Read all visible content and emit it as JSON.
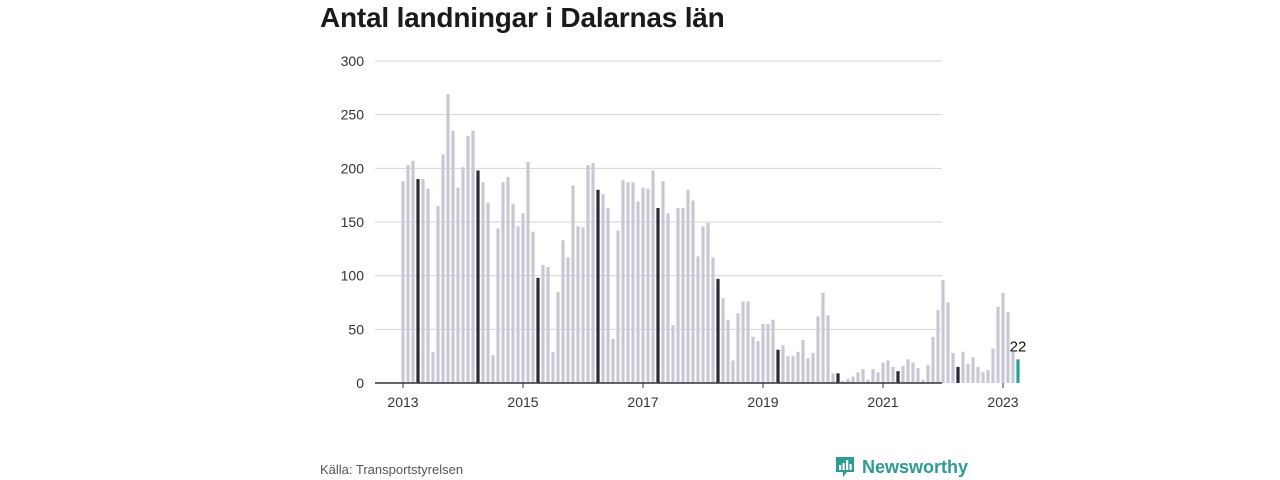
{
  "title": "Antal landningar i Dalarnas län",
  "source": "Källa: Transportstyrelsen",
  "brand": "Newsworthy",
  "colors": {
    "bar": "#c8c8d4",
    "bar_highlight": "#2b2b33",
    "bar_latest": "#22a39a",
    "grid": "#d6d6d6",
    "axis": "#333333",
    "brand": "#2e9b92"
  },
  "chart_data": {
    "type": "bar",
    "title": "Antal landningar i Dalarnas län",
    "ylim": [
      0,
      300
    ],
    "yticks": [
      0,
      50,
      100,
      150,
      200,
      250,
      300
    ],
    "xtick_labels": [
      "2013",
      "2015",
      "2017",
      "2019",
      "2021",
      "2023"
    ],
    "xtick_indices": [
      0,
      24,
      48,
      72,
      96,
      120
    ],
    "grid": true,
    "highlight_month": "April",
    "start": "2013-01",
    "end": "2023-04",
    "values": [
      188,
      203,
      207,
      190,
      190,
      181,
      29,
      165,
      213,
      269,
      235,
      182,
      201,
      230,
      235,
      198,
      187,
      168,
      26,
      144,
      187,
      192,
      167,
      146,
      158,
      206,
      141,
      98,
      110,
      108,
      29,
      85,
      133,
      117,
      184,
      146,
      145,
      203,
      205,
      180,
      176,
      163,
      41,
      142,
      189,
      187,
      187,
      169,
      182,
      181,
      198,
      163,
      188,
      158,
      54,
      163,
      163,
      180,
      170,
      118,
      146,
      149,
      117,
      97,
      79,
      59,
      21,
      65,
      76,
      76,
      43,
      39,
      55,
      55,
      59,
      31,
      35,
      25,
      25,
      29,
      40,
      23,
      28,
      62,
      84,
      63,
      9,
      9,
      2,
      4,
      6,
      10,
      13,
      3,
      13,
      10,
      19,
      21,
      15,
      11,
      16,
      22,
      19,
      14,
      3,
      17,
      43,
      68,
      96,
      75,
      28,
      15,
      29,
      18,
      24,
      15,
      10,
      12,
      32,
      71,
      84,
      66,
      29,
      22
    ],
    "latest_label": "22"
  }
}
